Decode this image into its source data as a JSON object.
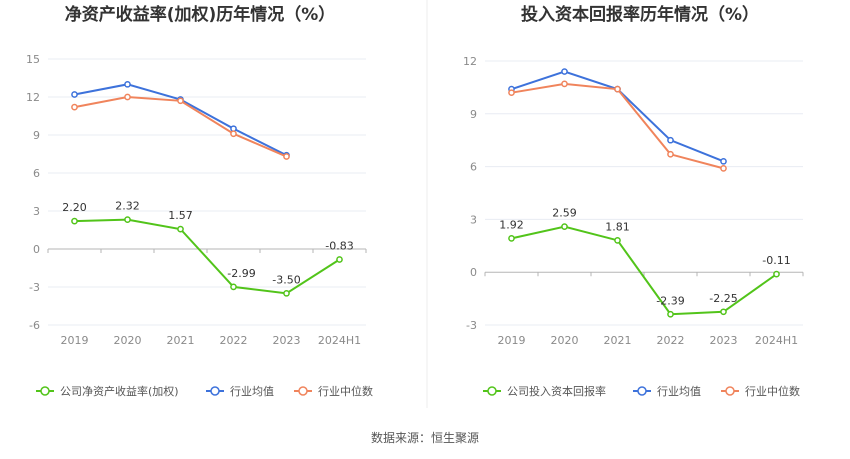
{
  "source_label": "数据来源：恒生聚源",
  "colors": {
    "company": "#52c41a",
    "average": "#3d72db",
    "median": "#f0845c"
  },
  "chart_data": [
    {
      "type": "line",
      "title": "净资产收益率(加权)历年情况（%）",
      "categories": [
        "2019",
        "2020",
        "2021",
        "2022",
        "2023",
        "2024H1"
      ],
      "yticks": [
        "15",
        "12",
        "9",
        "6",
        "3",
        "0",
        "-3",
        "-6"
      ],
      "ylim": [
        -6,
        15
      ],
      "grid": true,
      "legend_position": "bottom",
      "series": [
        {
          "name": "公司净资产收益率(加权)",
          "key": "company",
          "values": [
            2.2,
            2.32,
            1.57,
            -2.99,
            -3.5,
            -0.83
          ],
          "labels": [
            "2.20",
            "2.32",
            "1.57",
            "-2.99",
            "-3.50",
            "-0.83"
          ]
        },
        {
          "name": "行业均值",
          "key": "average",
          "values": [
            12.2,
            13.0,
            11.8,
            9.5,
            7.4,
            null
          ]
        },
        {
          "name": "行业中位数",
          "key": "median",
          "values": [
            11.2,
            12.0,
            11.7,
            9.1,
            7.3,
            null
          ]
        }
      ]
    },
    {
      "type": "line",
      "title": "投入资本回报率历年情况（%）",
      "categories": [
        "2019",
        "2020",
        "2021",
        "2022",
        "2023",
        "2024H1"
      ],
      "yticks": [
        "12",
        "9",
        "6",
        "3",
        "0",
        "-3"
      ],
      "ylim": [
        -3,
        12
      ],
      "grid": true,
      "legend_position": "bottom",
      "series": [
        {
          "name": "公司投入资本回报率",
          "key": "company",
          "values": [
            1.92,
            2.59,
            1.81,
            -2.39,
            -2.25,
            -0.11
          ],
          "labels": [
            "1.92",
            "2.59",
            "1.81",
            "-2.39",
            "-2.25",
            "-0.11"
          ]
        },
        {
          "name": "行业均值",
          "key": "average",
          "values": [
            10.4,
            11.4,
            10.4,
            7.5,
            6.3,
            null
          ]
        },
        {
          "name": "行业中位数",
          "key": "median",
          "values": [
            10.2,
            10.7,
            10.4,
            6.7,
            5.9,
            null
          ]
        }
      ]
    }
  ]
}
